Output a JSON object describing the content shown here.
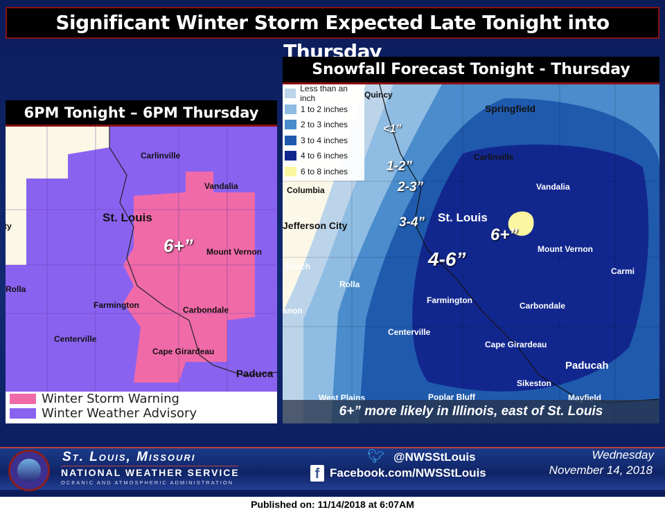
{
  "title": "Significant Winter Storm Expected Late Tonight into Thursday",
  "left_panel": {
    "title": "6PM Tonight – 6PM Thursday",
    "cities": [
      "Carlinville",
      "Vandalia",
      "St. Louis",
      "Mount Vernon",
      "Rolla",
      "Farmington",
      "Carbondale",
      "Centerville",
      "Cape Girardeau",
      "Paduca",
      "City"
    ],
    "amount_label": "6+”",
    "legend": [
      {
        "label": "Winter Storm Warning",
        "color": "#f06aa8"
      },
      {
        "label": "Winter Weather Advisory",
        "color": "#8a62f0"
      }
    ]
  },
  "right_panel": {
    "title": "Snowfall Forecast Tonight - Thursday",
    "legend": [
      {
        "label": "Less than an inch",
        "color": "#bcd4ea"
      },
      {
        "label": "1 to 2 inches",
        "color": "#8fbce2"
      },
      {
        "label": "2 to 3 inches",
        "color": "#4a8ccc"
      },
      {
        "label": "3 to 4 inches",
        "color": "#1f5aad"
      },
      {
        "label": "4 to 6 inches",
        "color": "#12278e"
      },
      {
        "label": "6 to 8 inches",
        "color": "#fbf7a0"
      }
    ],
    "cities": [
      "Quincy",
      "Springfield",
      "Carlinville",
      "Columbia",
      "Vandalia",
      "Jefferson City",
      "St. Louis",
      "Mount Vernon",
      "Beach",
      "Carmi",
      "Rolla",
      "Farmington",
      "Carbondale",
      "anon",
      "Centerville",
      "Cape Girardeau",
      "Paducah",
      "Sikeston",
      "West Plains",
      "Poplar Bluff",
      "Mayfield"
    ],
    "amounts": [
      "<1”",
      "1-2”",
      "2-3”",
      "3-4”",
      "4-6”",
      "6+”"
    ],
    "caption": "6+” more likely in Illinois, east of St. Louis"
  },
  "footer": {
    "office": "St. Louis, Missouri",
    "agency": "NATIONAL WEATHER SERVICE",
    "sub": "OCEANIC AND ATMOSPHERIC ADMINISTRATION",
    "logo_text": "NATIONAL WEATHER SERVICE",
    "twitter": "@NWSStLouis",
    "facebook": "Facebook.com/NWSStLouis",
    "day": "Wednesday",
    "date": "November 14, 2018"
  },
  "published": "Published on: 11/14/2018 at 6:07AM"
}
